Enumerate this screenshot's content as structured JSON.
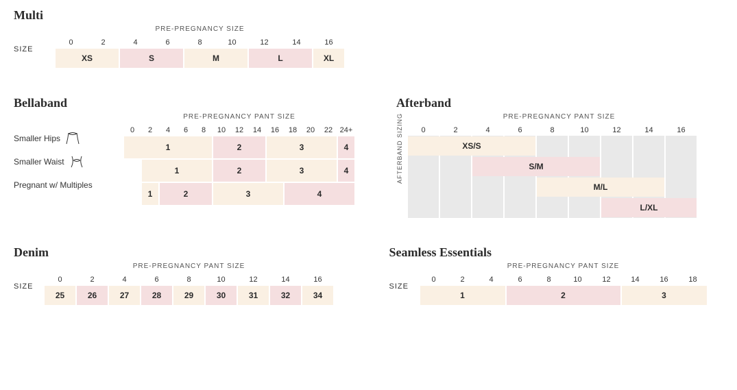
{
  "colors": {
    "cream": "#faf0e3",
    "pink": "#f5dfe0",
    "grey": "#e9e9e9",
    "text": "#2b2b2b"
  },
  "multi": {
    "title": "Multi",
    "subheader": "PRE-PREGNANCY SIZE",
    "row_label": "SIZE",
    "unit": 47,
    "columns": [
      "0",
      "2",
      "4",
      "6",
      "8",
      "10",
      "12",
      "14",
      "16"
    ],
    "cells": [
      {
        "label": "XS",
        "span": 2,
        "color": "cream"
      },
      {
        "label": "S",
        "span": 2,
        "color": "pink"
      },
      {
        "label": "M",
        "span": 2,
        "color": "cream"
      },
      {
        "label": "L",
        "span": 2,
        "color": "pink"
      },
      {
        "label": "XL",
        "span": 1,
        "color": "cream"
      }
    ]
  },
  "bellaband": {
    "title": "Bellaband",
    "subheader": "PRE-PREGNANCY PANT SIZE",
    "unit": 26,
    "label_width": 160,
    "columns": [
      "0",
      "2",
      "4",
      "6",
      "8",
      "10",
      "12",
      "14",
      "16",
      "18",
      "20",
      "22",
      "24+"
    ],
    "rows": [
      {
        "label": "Smaller Hips",
        "icon": "hips",
        "cells": [
          {
            "label": "1",
            "span": 5,
            "color": "cream"
          },
          {
            "label": "2",
            "span": 3,
            "color": "pink"
          },
          {
            "label": "3",
            "span": 4,
            "color": "cream"
          },
          {
            "label": "4",
            "span": 1,
            "color": "pink"
          }
        ]
      },
      {
        "label": "Smaller Waist",
        "icon": "waist",
        "cells": [
          {
            "label": "",
            "span": 1,
            "color": "none"
          },
          {
            "label": "1",
            "span": 4,
            "color": "cream"
          },
          {
            "label": "2",
            "span": 3,
            "color": "pink"
          },
          {
            "label": "3",
            "span": 4,
            "color": "cream"
          },
          {
            "label": "4",
            "span": 1,
            "color": "pink"
          }
        ]
      },
      {
        "label": "Pregnant w/ Multiples",
        "icon": "",
        "cells": [
          {
            "label": "",
            "span": 1,
            "color": "none"
          },
          {
            "label": "1",
            "span": 1,
            "color": "cream"
          },
          {
            "label": "2",
            "span": 3,
            "color": "pink"
          },
          {
            "label": "3",
            "span": 4,
            "color": "cream"
          },
          {
            "label": "4",
            "span": 4,
            "color": "pink"
          }
        ]
      }
    ]
  },
  "afterband": {
    "title": "Afterband",
    "subheader": "PRE-PREGNANCY PANT SIZE",
    "vlabel": "AFTERBAND\nSIZING",
    "unit": 47,
    "columns": [
      "0",
      "2",
      "4",
      "6",
      "8",
      "10",
      "12",
      "14",
      "16"
    ],
    "bg_rows": 4,
    "bands": [
      {
        "label": "XS/S",
        "start": 0,
        "span": 4,
        "row": 0,
        "color": "cream"
      },
      {
        "label": "S/M",
        "start": 2,
        "span": 4,
        "row": 1,
        "color": "pink"
      },
      {
        "label": "M/L",
        "start": 4,
        "span": 4,
        "row": 2,
        "color": "cream"
      },
      {
        "label": "L/XL",
        "start": 6,
        "span": 3,
        "row": 3,
        "color": "pink"
      }
    ]
  },
  "denim": {
    "title": "Denim",
    "subheader": "PRE-PREGNANCY PANT SIZE",
    "row_label": "SIZE",
    "unit": 47,
    "columns": [
      "0",
      "2",
      "4",
      "6",
      "8",
      "10",
      "12",
      "14",
      "16"
    ],
    "cells": [
      {
        "label": "25",
        "span": 1,
        "color": "cream"
      },
      {
        "label": "26",
        "span": 1,
        "color": "pink"
      },
      {
        "label": "27",
        "span": 1,
        "color": "cream"
      },
      {
        "label": "28",
        "span": 1,
        "color": "pink"
      },
      {
        "label": "29",
        "span": 1,
        "color": "cream"
      },
      {
        "label": "30",
        "span": 1,
        "color": "pink"
      },
      {
        "label": "31",
        "span": 1,
        "color": "cream"
      },
      {
        "label": "32",
        "span": 1,
        "color": "pink"
      },
      {
        "label": "34",
        "span": 1,
        "color": "cream"
      }
    ]
  },
  "seamless": {
    "title": "Seamless Essentials",
    "subheader": "PRE-PREGNANCY PANT SIZE",
    "row_label": "SIZE",
    "unit": 42,
    "columns": [
      "0",
      "2",
      "4",
      "6",
      "8",
      "10",
      "12",
      "14",
      "16",
      "18"
    ],
    "cells": [
      {
        "label": "1",
        "span": 3,
        "color": "cream"
      },
      {
        "label": "2",
        "span": 4,
        "color": "pink"
      },
      {
        "label": "3",
        "span": 3,
        "color": "cream"
      }
    ]
  }
}
